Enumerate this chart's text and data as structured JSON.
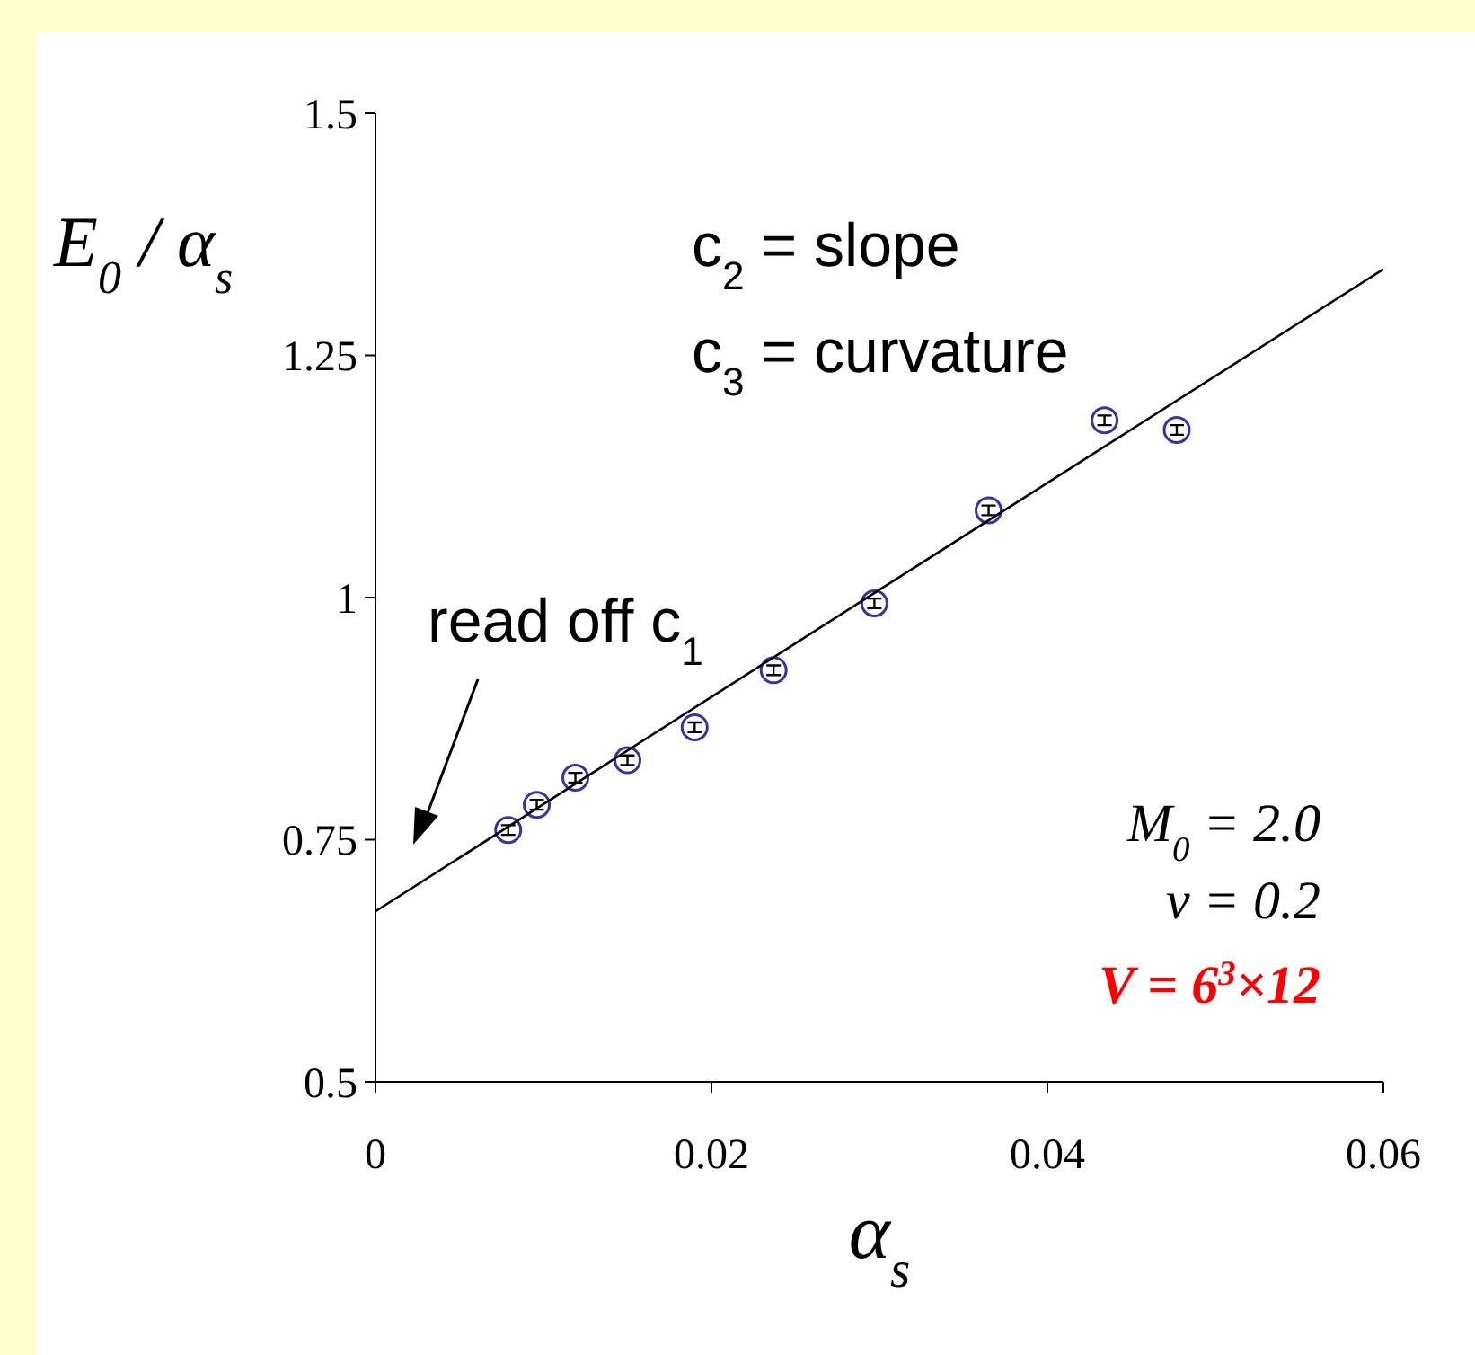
{
  "chart_data": {
    "type": "scatter",
    "xlabel": "α$_{s}$",
    "ylabel": "E$_{0}$ / α$_{s}$",
    "xlim": [
      0,
      0.06
    ],
    "xticks": [
      0,
      0.02,
      0.04,
      0.06
    ],
    "ylim": [
      0.5,
      1.5
    ],
    "yticks": [
      0.5,
      0.75,
      1,
      1.25,
      1.5
    ],
    "grid": false,
    "annotations": [
      "c$_{2}$ = slope",
      "c$_{3}$ = curvature",
      "read off c$_{1}$",
      "M$_{0}$ = 2.0",
      "v = 0.2",
      "V = 6$^{3}$×12"
    ],
    "series": [
      {
        "marker": "circle",
        "color": "#3333aa",
        "x": [
          0.0079,
          0.0096,
          0.0119,
          0.015,
          0.019,
          0.0237,
          0.0297,
          0.0365,
          0.0434,
          0.0477
        ],
        "values": [
          0.76,
          0.786,
          0.814,
          0.832,
          0.866,
          0.925,
          0.994,
          1.09,
          1.183,
          1.173
        ],
        "errors": [
          0.005,
          0.005,
          0.005,
          0.005,
          0.005,
          0.005,
          0.005,
          0.005,
          0.005,
          0.005
        ]
      },
      {
        "type": "line",
        "color": "#000000",
        "x": [
          0,
          0.03,
          0.06
        ],
        "values": [
          0.676,
          1.008,
          1.339
        ]
      }
    ]
  }
}
